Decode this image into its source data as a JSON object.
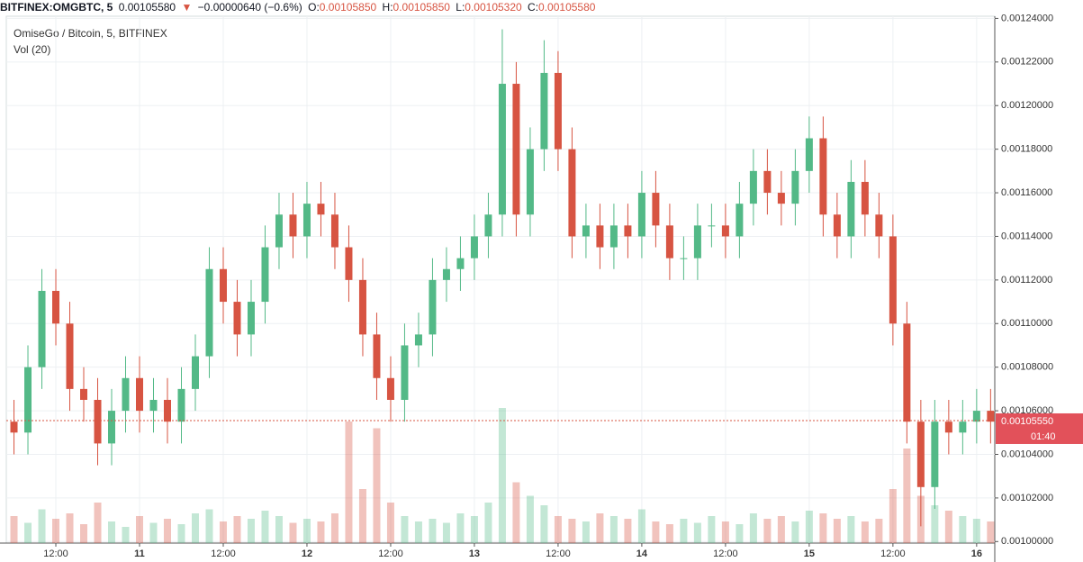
{
  "header": {
    "symbol": "BITFINEX:OMGBTC, 5",
    "price": "0.00105580",
    "arrow": "▼",
    "change": "−0.00000640 (−0.6%)",
    "open_label": "O:",
    "open": "0.00105850",
    "high_label": "H:",
    "high": "0.00105850",
    "low_label": "L:",
    "low": "0.00105320",
    "close_label": "C:",
    "close": "0.00105580"
  },
  "chart_data": {
    "type": "candlestick",
    "title": "OmiseGo / Bitcoin, 5, BITFINEX",
    "volume_label": "Vol (20)",
    "up_color": "#53b987",
    "down_color": "#d75442",
    "grid": true,
    "xlim": [
      4.9,
      146.6
    ],
    "xticks": [
      {
        "value": 12,
        "label": "12:00"
      },
      {
        "value": 24,
        "label": "11"
      },
      {
        "value": 36,
        "label": "12:00"
      },
      {
        "value": 48,
        "label": "12"
      },
      {
        "value": 60,
        "label": "12:00"
      },
      {
        "value": 72,
        "label": "13"
      },
      {
        "value": 84,
        "label": "12:00"
      },
      {
        "value": 96,
        "label": "14"
      },
      {
        "value": 108,
        "label": "12:00"
      },
      {
        "value": 120,
        "label": "15"
      },
      {
        "value": 132,
        "label": "12:00"
      },
      {
        "value": 144,
        "label": "16"
      }
    ],
    "ylim": [
      0.0009993,
      0.001241
    ],
    "yticks": [
      {
        "value": 0.001,
        "label": "0.00100000"
      },
      {
        "value": 0.00102,
        "label": "0.00102000"
      },
      {
        "value": 0.00104,
        "label": "0.00104000"
      },
      {
        "value": 0.00106,
        "label": "0.00106000"
      },
      {
        "value": 0.00108,
        "label": "0.00108000"
      },
      {
        "value": 0.0011,
        "label": "0.00110000"
      },
      {
        "value": 0.00112,
        "label": "0.00112000"
      },
      {
        "value": 0.00114,
        "label": "0.00114000"
      },
      {
        "value": 0.00116,
        "label": "0.00116000"
      },
      {
        "value": 0.00118,
        "label": "0.00118000"
      },
      {
        "value": 0.0012,
        "label": "0.00120000"
      },
      {
        "value": 0.00122,
        "label": "0.00122000"
      },
      {
        "value": 0.00124,
        "label": "0.00124000"
      }
    ],
    "last_price": {
      "value": 0.0010555,
      "label": "0.00105550"
    },
    "countdown": "01:40",
    "x": [
      6,
      8,
      10,
      12,
      14,
      16,
      18,
      20,
      22,
      24,
      26,
      28,
      30,
      32,
      34,
      36,
      38,
      40,
      42,
      44,
      46,
      48,
      50,
      52,
      54,
      56,
      58,
      60,
      62,
      64,
      66,
      68,
      70,
      72,
      74,
      76,
      78,
      80,
      82,
      84,
      86,
      88,
      90,
      92,
      94,
      96,
      98,
      100,
      102,
      104,
      106,
      108,
      110,
      112,
      114,
      116,
      118,
      120,
      122,
      124,
      126,
      128,
      130,
      132,
      134,
      136,
      138,
      140,
      142,
      144,
      146
    ],
    "open": [
      0.001055,
      0.00105,
      0.00108,
      0.001115,
      0.0011,
      0.00107,
      0.001065,
      0.001045,
      0.00106,
      0.001075,
      0.00106,
      0.001065,
      0.001055,
      0.00107,
      0.001085,
      0.001125,
      0.00111,
      0.001095,
      0.00111,
      0.001135,
      0.00115,
      0.00114,
      0.001155,
      0.00115,
      0.001135,
      0.00112,
      0.001095,
      0.001075,
      0.001065,
      0.00109,
      0.001095,
      0.00112,
      0.001125,
      0.00113,
      0.00114,
      0.00115,
      0.00121,
      0.00115,
      0.00118,
      0.001215,
      0.00118,
      0.00114,
      0.001145,
      0.001135,
      0.001145,
      0.00114,
      0.00116,
      0.001145,
      0.00113,
      0.00113,
      0.001145,
      0.001145,
      0.00114,
      0.001155,
      0.00117,
      0.00116,
      0.001155,
      0.00117,
      0.001185,
      0.00115,
      0.00114,
      0.001165,
      0.00115,
      0.00114,
      0.0011,
      0.001055,
      0.001025,
      0.001055,
      0.00105,
      0.001055,
      0.00106
    ],
    "high": [
      0.001065,
      0.00109,
      0.001125,
      0.001125,
      0.00111,
      0.00108,
      0.001075,
      0.00107,
      0.001085,
      0.001085,
      0.001075,
      0.001075,
      0.00108,
      0.001095,
      0.001135,
      0.001135,
      0.00112,
      0.00112,
      0.001145,
      0.00116,
      0.00116,
      0.001165,
      0.001165,
      0.00116,
      0.001145,
      0.00113,
      0.001105,
      0.001085,
      0.0011,
      0.001105,
      0.00113,
      0.001135,
      0.00114,
      0.00115,
      0.00116,
      0.001235,
      0.00122,
      0.00119,
      0.00123,
      0.001225,
      0.00119,
      0.001155,
      0.001155,
      0.001155,
      0.001155,
      0.00117,
      0.00117,
      0.001155,
      0.00114,
      0.001155,
      0.001155,
      0.001155,
      0.001165,
      0.00118,
      0.00118,
      0.00117,
      0.00118,
      0.001195,
      0.001195,
      0.00116,
      0.001175,
      0.001175,
      0.00116,
      0.00115,
      0.00111,
      0.001065,
      0.001065,
      0.001065,
      0.001065,
      0.00107,
      0.00107
    ],
    "low": [
      0.00104,
      0.00104,
      0.00107,
      0.00109,
      0.00106,
      0.001055,
      0.001035,
      0.001035,
      0.00105,
      0.00105,
      0.00105,
      0.001045,
      0.001045,
      0.00106,
      0.001075,
      0.0011,
      0.001085,
      0.001085,
      0.0011,
      0.001125,
      0.00113,
      0.00113,
      0.00114,
      0.001125,
      0.00111,
      0.001085,
      0.001065,
      0.001055,
      0.001055,
      0.00108,
      0.001085,
      0.00111,
      0.001115,
      0.00112,
      0.00113,
      0.00114,
      0.00114,
      0.00114,
      0.00117,
      0.00117,
      0.00113,
      0.00113,
      0.001125,
      0.001125,
      0.00113,
      0.00113,
      0.001135,
      0.00112,
      0.00112,
      0.00112,
      0.001135,
      0.00113,
      0.00113,
      0.001145,
      0.00115,
      0.001145,
      0.001145,
      0.00116,
      0.00114,
      0.00113,
      0.00113,
      0.00114,
      0.00113,
      0.00109,
      0.001045,
      0.001007,
      0.001015,
      0.00104,
      0.00104,
      0.001045,
      0.001045
    ],
    "close": [
      0.00105,
      0.00108,
      0.001115,
      0.0011,
      0.00107,
      0.001065,
      0.001045,
      0.00106,
      0.001075,
      0.00106,
      0.001065,
      0.001055,
      0.00107,
      0.001085,
      0.001125,
      0.00111,
      0.001095,
      0.00111,
      0.001135,
      0.00115,
      0.00114,
      0.001155,
      0.00115,
      0.001135,
      0.00112,
      0.001095,
      0.001075,
      0.001065,
      0.00109,
      0.001095,
      0.00112,
      0.001125,
      0.00113,
      0.00114,
      0.00115,
      0.00121,
      0.00115,
      0.00118,
      0.001215,
      0.00118,
      0.00114,
      0.001145,
      0.001135,
      0.001145,
      0.00114,
      0.00116,
      0.001145,
      0.00113,
      0.00113,
      0.001145,
      0.001145,
      0.00114,
      0.001155,
      0.00117,
      0.00116,
      0.001155,
      0.00117,
      0.001185,
      0.00115,
      0.00114,
      0.001165,
      0.00115,
      0.00114,
      0.0011,
      0.001055,
      0.001025,
      0.001055,
      0.00105,
      0.001055,
      0.00106,
      0.001055
    ],
    "volume": [
      20,
      15,
      25,
      18,
      22,
      14,
      30,
      16,
      12,
      20,
      15,
      18,
      14,
      22,
      25,
      16,
      20,
      18,
      24,
      20,
      15,
      18,
      16,
      22,
      90,
      40,
      85,
      30,
      20,
      16,
      18,
      15,
      22,
      20,
      30,
      100,
      45,
      35,
      28,
      20,
      18,
      16,
      22,
      20,
      18,
      25,
      16,
      14,
      18,
      15,
      20,
      16,
      14,
      22,
      18,
      20,
      16,
      24,
      22,
      18,
      20,
      16,
      18,
      40,
      70,
      35,
      28,
      24,
      20,
      18,
      16
    ]
  }
}
